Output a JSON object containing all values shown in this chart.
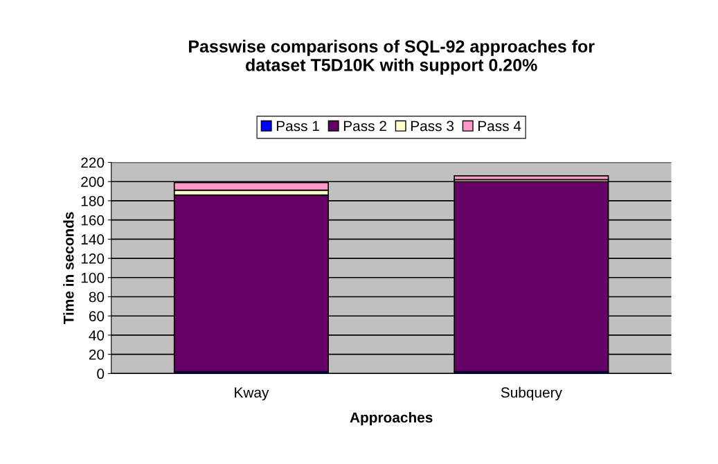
{
  "chart_data": {
    "type": "bar",
    "title": "Passwise comparisons of SQL-92 approaches for\ndataset T5D10K with support 0.20%",
    "xlabel": "Approaches",
    "ylabel": "Time in seconds",
    "categories": [
      "Kway",
      "Subquery"
    ],
    "stacked": true,
    "series": [
      {
        "name": "Pass 1",
        "color": "#0000ff",
        "values": [
          2,
          2
        ]
      },
      {
        "name": "Pass 2",
        "color": "#660066",
        "values": [
          184,
          198
        ]
      },
      {
        "name": "Pass 3",
        "color": "#ffffcc",
        "values": [
          5,
          2
        ]
      },
      {
        "name": "Pass 4",
        "color": "#ff99cc",
        "values": [
          8,
          4
        ]
      }
    ],
    "ylim": [
      0,
      220
    ],
    "yticks": [
      0,
      20,
      40,
      60,
      80,
      100,
      120,
      140,
      160,
      180,
      200,
      220
    ],
    "grid": "y",
    "legend": "top"
  }
}
